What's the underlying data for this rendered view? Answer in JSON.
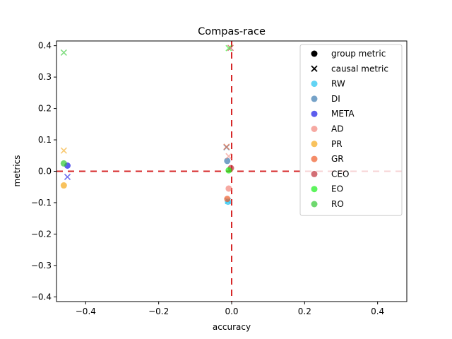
{
  "chart_data": {
    "type": "scatter",
    "title": "Compas-race",
    "xlabel": "accuracy",
    "ylabel": "metrics",
    "xlim": [
      -0.48,
      0.48
    ],
    "ylim": [
      -0.415,
      0.415
    ],
    "xticks": [
      -0.4,
      -0.2,
      0.0,
      0.2,
      0.4
    ],
    "xtick_labels": [
      "−0.4",
      "−0.2",
      "0.0",
      "0.2",
      "0.4"
    ],
    "yticks": [
      -0.4,
      -0.3,
      -0.2,
      -0.1,
      0.0,
      0.1,
      0.2,
      0.3,
      0.4
    ],
    "ytick_labels": [
      "−0.4",
      "−0.3",
      "−0.2",
      "−0.1",
      "0.0",
      "0.1",
      "0.2",
      "0.3",
      "0.4"
    ],
    "grid": false,
    "legend_position": "top-right",
    "legend_markers": [
      {
        "label": "group metric",
        "marker": "circle"
      },
      {
        "label": "causal metric",
        "marker": "x"
      }
    ],
    "series": [
      {
        "name": "RW",
        "color": "#1fc2f0",
        "group": [
          [
            -0.01,
            -0.097
          ]
        ],
        "causal": [
          [
            -0.01,
            -0.095
          ]
        ]
      },
      {
        "name": "DI",
        "color": "#3a7ab0",
        "group": [
          [
            -0.012,
            0.033
          ]
        ],
        "causal": [
          [
            -0.014,
            0.076
          ]
        ]
      },
      {
        "name": "META",
        "color": "#1818e6",
        "group": [
          [
            -0.45,
            0.018
          ]
        ],
        "causal": [
          [
            -0.45,
            -0.018
          ]
        ]
      },
      {
        "name": "AD",
        "color": "#f2847a",
        "group": [
          [
            -0.008,
            -0.055
          ]
        ],
        "causal": [
          [
            -0.008,
            0.048
          ]
        ]
      },
      {
        "name": "PR",
        "color": "#f5a818",
        "group": [
          [
            -0.46,
            -0.045
          ]
        ],
        "causal": [
          [
            -0.46,
            0.066
          ]
        ]
      },
      {
        "name": "GR",
        "color": "#f05b28",
        "group": [
          [
            -0.012,
            -0.088
          ]
        ],
        "causal": [
          [
            -0.014,
            0.078
          ]
        ]
      },
      {
        "name": "CEO",
        "color": "#c0303a",
        "group": [
          [
            -0.002,
            0.01
          ]
        ],
        "causal": [
          [
            -0.003,
            0.393
          ]
        ]
      },
      {
        "name": "EO",
        "color": "#18f018",
        "group": [
          [
            -0.008,
            0.003
          ]
        ],
        "causal": [
          [
            -0.008,
            0.392
          ]
        ]
      },
      {
        "name": "RO",
        "color": "#30c830",
        "group": [
          [
            -0.46,
            0.025
          ]
        ],
        "causal": [
          [
            -0.46,
            0.378
          ]
        ]
      }
    ],
    "reference_lines": {
      "x": 0.0,
      "y": 0.0,
      "color": "#d62728",
      "style": "dashed"
    }
  }
}
